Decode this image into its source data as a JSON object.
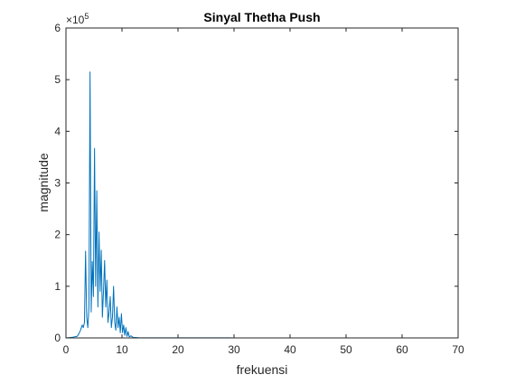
{
  "chart_data": {
    "type": "line",
    "title": "Sinyal Thetha Push",
    "xlabel": "frekuensi",
    "ylabel": "magnitude",
    "xlim": [
      0,
      70
    ],
    "ylim": [
      0,
      600000
    ],
    "xticks": [
      0,
      10,
      20,
      30,
      40,
      50,
      60,
      70
    ],
    "yticks": [
      0,
      1,
      2,
      3,
      4,
      5,
      6
    ],
    "y_exponent_base": "×10",
    "y_exponent_power": "5",
    "grid": false,
    "box": true,
    "series_color": "#0072BD",
    "series": [
      {
        "x": [
          0,
          1,
          2,
          2.3,
          2.6,
          2.9,
          3.1,
          3.3,
          3.5,
          3.7,
          3.9,
          4.1,
          4.3,
          4.5,
          4.7,
          4.9,
          5.1,
          5.3,
          5.5,
          5.7,
          5.9,
          6.1,
          6.3,
          6.5,
          6.7,
          6.9,
          7.1,
          7.3,
          7.5,
          7.7,
          7.9,
          8.1,
          8.3,
          8.5,
          8.7,
          8.9,
          9.1,
          9.3,
          9.5,
          9.7,
          9.9,
          10.1,
          10.3,
          10.5,
          10.7,
          10.9,
          11.1,
          11.3,
          11.6,
          12,
          13,
          15,
          20,
          30,
          40,
          50,
          60,
          63.7
        ],
        "y": [
          0,
          1000,
          3000,
          8000,
          15000,
          25000,
          20000,
          30000,
          168000,
          40000,
          20000,
          60000,
          515000,
          50000,
          148000,
          80000,
          367000,
          100000,
          285000,
          60000,
          205000,
          90000,
          170000,
          40000,
          90000,
          150000,
          60000,
          112000,
          30000,
          50000,
          80000,
          20000,
          40000,
          100000,
          30000,
          15000,
          60000,
          20000,
          40000,
          10000,
          47000,
          10000,
          25000,
          5000,
          20000,
          3000,
          12000,
          2000,
          4000,
          1000,
          500,
          300,
          200,
          100,
          80,
          50,
          30,
          0
        ]
      }
    ]
  }
}
